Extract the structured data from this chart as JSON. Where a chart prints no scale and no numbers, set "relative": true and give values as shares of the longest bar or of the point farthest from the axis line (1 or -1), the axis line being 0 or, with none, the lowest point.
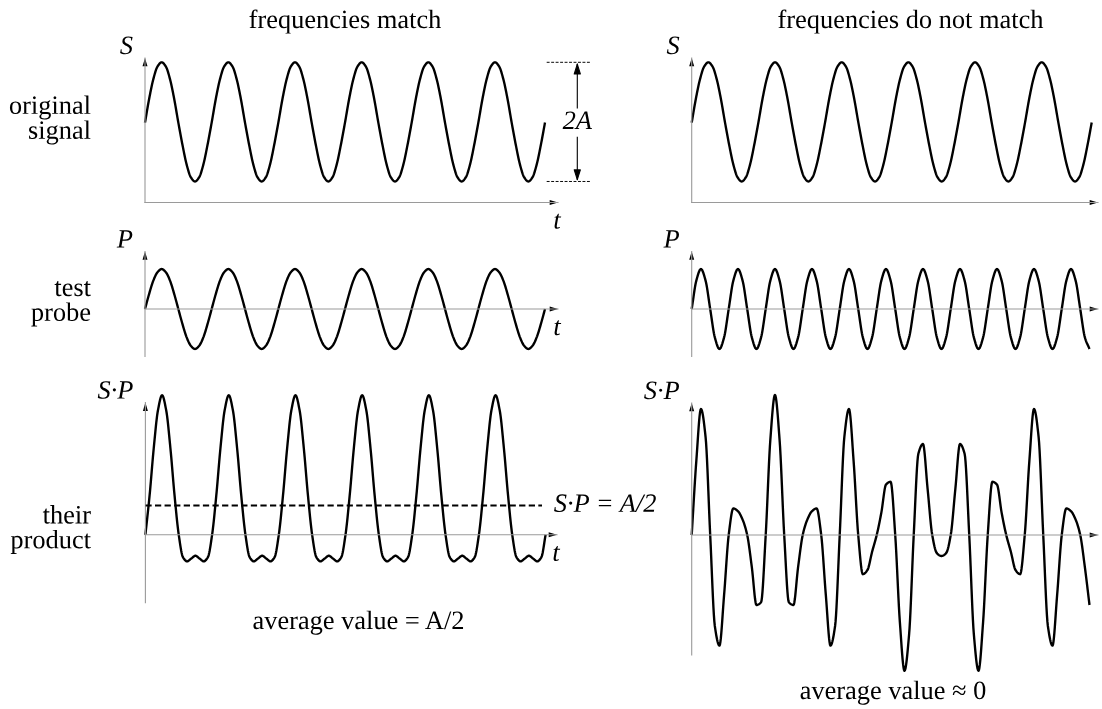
{
  "chart_data": [
    {
      "type": "line",
      "title": "frequencies match",
      "xlabel": "t",
      "ylabel": "S",
      "relative": true,
      "annotations": [
        "original\nsignal",
        {
          "text": "2A",
          "y": 0.57
        }
      ],
      "categories": [
        null,
        null,
        null,
        null,
        null,
        null,
        null,
        null,
        null,
        null,
        null,
        null,
        null,
        null,
        null,
        null,
        null,
        null,
        null,
        null,
        null,
        null,
        null,
        null,
        null,
        null,
        null,
        null,
        null,
        null,
        null,
        null,
        null,
        null,
        null,
        null,
        null,
        null,
        null,
        null,
        null,
        null,
        null,
        null,
        null,
        null,
        null,
        null,
        null,
        null,
        null,
        null,
        null,
        null,
        null,
        null,
        null,
        null,
        null,
        null,
        null,
        null,
        null,
        null,
        null,
        null,
        null,
        null,
        null,
        null,
        null,
        null,
        null,
        null,
        null,
        null,
        null,
        null,
        null,
        null,
        null,
        null,
        null,
        null,
        null,
        null,
        null,
        null,
        null,
        null,
        null,
        null,
        null,
        null,
        null,
        null,
        null
      ],
      "series": [
        {
          "color": "#000000",
          "values": [
            0.57,
            0.74,
            0.88,
            0.97,
            1,
            0.97,
            0.88,
            0.74,
            0.57,
            0.41,
            0.27,
            0.18,
            0.15,
            0.18,
            0.27,
            0.41,
            0.57,
            0.74,
            0.88,
            0.97,
            1,
            0.97,
            0.88,
            0.74,
            0.57,
            0.41,
            0.27,
            0.18,
            0.15,
            0.18,
            0.27,
            0.41,
            0.57,
            0.74,
            0.88,
            0.97,
            1,
            0.97,
            0.88,
            0.74,
            0.57,
            0.41,
            0.27,
            0.18,
            0.15,
            0.18,
            0.27,
            0.41,
            0.57,
            0.74,
            0.88,
            0.97,
            1,
            0.97,
            0.88,
            0.74,
            0.57,
            0.41,
            0.27,
            0.18,
            0.15,
            0.18,
            0.27,
            0.41,
            0.57,
            0.74,
            0.88,
            0.97,
            1,
            0.97,
            0.88,
            0.74,
            0.57,
            0.41,
            0.27,
            0.18,
            0.15,
            0.18,
            0.27,
            0.41,
            0.57,
            0.74,
            0.88,
            0.97,
            1,
            0.97,
            0.88,
            0.74,
            0.57,
            0.41,
            0.27,
            0.18,
            0.15,
            0.18,
            0.27,
            0.41,
            0.57
          ]
        }
      ]
    },
    {
      "type": "line",
      "title": "frequencies do not match",
      "ylabel": "S",
      "relative": true,
      "categories": [
        null,
        null,
        null,
        null,
        null,
        null,
        null,
        null,
        null,
        null,
        null,
        null,
        null,
        null,
        null,
        null,
        null,
        null,
        null,
        null,
        null,
        null,
        null,
        null,
        null,
        null,
        null,
        null,
        null,
        null,
        null,
        null,
        null,
        null,
        null,
        null,
        null,
        null,
        null,
        null,
        null,
        null,
        null,
        null,
        null,
        null,
        null,
        null,
        null,
        null,
        null,
        null,
        null,
        null,
        null,
        null,
        null,
        null,
        null,
        null,
        null,
        null,
        null,
        null,
        null,
        null,
        null,
        null,
        null,
        null,
        null,
        null,
        null,
        null,
        null,
        null,
        null,
        null,
        null,
        null,
        null,
        null,
        null,
        null,
        null,
        null,
        null,
        null,
        null,
        null,
        null,
        null,
        null,
        null,
        null,
        null,
        null
      ],
      "series": [
        {
          "color": "#000000",
          "values": [
            0.57,
            0.74,
            0.88,
            0.97,
            1,
            0.97,
            0.88,
            0.74,
            0.57,
            0.41,
            0.27,
            0.18,
            0.15,
            0.18,
            0.27,
            0.41,
            0.57,
            0.74,
            0.88,
            0.97,
            1,
            0.97,
            0.88,
            0.74,
            0.57,
            0.41,
            0.27,
            0.18,
            0.15,
            0.18,
            0.27,
            0.41,
            0.57,
            0.74,
            0.88,
            0.97,
            1,
            0.97,
            0.88,
            0.74,
            0.57,
            0.41,
            0.27,
            0.18,
            0.15,
            0.18,
            0.27,
            0.41,
            0.57,
            0.74,
            0.88,
            0.97,
            1,
            0.97,
            0.88,
            0.74,
            0.57,
            0.41,
            0.27,
            0.18,
            0.15,
            0.18,
            0.27,
            0.41,
            0.57,
            0.74,
            0.88,
            0.97,
            1,
            0.97,
            0.88,
            0.74,
            0.57,
            0.41,
            0.27,
            0.18,
            0.15,
            0.18,
            0.27,
            0.41,
            0.57,
            0.74,
            0.88,
            0.97,
            1,
            0.97,
            0.88,
            0.74,
            0.57,
            0.41,
            0.27,
            0.18,
            0.15,
            0.18,
            0.27,
            0.41,
            0.57
          ]
        }
      ]
    },
    {
      "type": "line",
      "xlabel": "t",
      "ylabel": "P",
      "relative": true,
      "annotations": [
        "test\nprobe"
      ],
      "categories": [
        null,
        null,
        null,
        null,
        null,
        null,
        null,
        null,
        null,
        null,
        null,
        null,
        null,
        null,
        null,
        null,
        null,
        null,
        null,
        null,
        null,
        null,
        null,
        null,
        null,
        null,
        null,
        null,
        null,
        null,
        null,
        null,
        null,
        null,
        null,
        null,
        null,
        null,
        null,
        null,
        null,
        null,
        null,
        null,
        null,
        null,
        null,
        null,
        null,
        null,
        null,
        null,
        null,
        null,
        null,
        null,
        null,
        null,
        null,
        null,
        null,
        null,
        null,
        null,
        null,
        null,
        null,
        null,
        null,
        null,
        null,
        null,
        null,
        null,
        null,
        null,
        null,
        null,
        null,
        null,
        null,
        null,
        null,
        null,
        null,
        null,
        null,
        null,
        null,
        null,
        null,
        null,
        null,
        null,
        null,
        null,
        null
      ],
      "series": [
        {
          "color": "#000000",
          "values": [
            0,
            0.38,
            0.71,
            0.92,
            1,
            0.92,
            0.71,
            0.38,
            0,
            -0.38,
            -0.71,
            -0.92,
            -1,
            -0.92,
            -0.71,
            -0.38,
            0,
            0.38,
            0.71,
            0.92,
            1,
            0.92,
            0.71,
            0.38,
            0,
            -0.38,
            -0.71,
            -0.92,
            -1,
            -0.92,
            -0.71,
            -0.38,
            0,
            0.38,
            0.71,
            0.92,
            1,
            0.92,
            0.71,
            0.38,
            0,
            -0.38,
            -0.71,
            -0.92,
            -1,
            -0.92,
            -0.71,
            -0.38,
            0,
            0.38,
            0.71,
            0.92,
            1,
            0.92,
            0.71,
            0.38,
            0,
            -0.38,
            -0.71,
            -0.92,
            -1,
            -0.92,
            -0.71,
            -0.38,
            0,
            0.38,
            0.71,
            0.92,
            1,
            0.92,
            0.71,
            0.38,
            0,
            -0.38,
            -0.71,
            -0.92,
            -1,
            -0.92,
            -0.71,
            -0.38,
            0,
            0.38,
            0.71,
            0.92,
            1,
            0.92,
            0.71,
            0.38,
            0,
            -0.38,
            -0.71,
            -0.92,
            -1,
            -0.92,
            -0.71,
            -0.38,
            0
          ]
        }
      ]
    },
    {
      "type": "line",
      "ylabel": "P",
      "relative": true,
      "categories": [
        null,
        null,
        null,
        null,
        null,
        null,
        null,
        null,
        null,
        null,
        null,
        null,
        null,
        null,
        null,
        null,
        null,
        null,
        null,
        null,
        null,
        null,
        null,
        null,
        null,
        null,
        null,
        null,
        null,
        null,
        null,
        null,
        null,
        null,
        null,
        null,
        null,
        null,
        null,
        null,
        null,
        null,
        null,
        null,
        null,
        null,
        null,
        null,
        null,
        null,
        null,
        null,
        null,
        null,
        null,
        null,
        null,
        null,
        null,
        null,
        null,
        null,
        null,
        null,
        null,
        null,
        null,
        null,
        null,
        null,
        null,
        null,
        null,
        null,
        null,
        null,
        null,
        null,
        null,
        null,
        null,
        null,
        null,
        null,
        null,
        null,
        null
      ],
      "series": [
        {
          "color": "#000000",
          "values": [
            0,
            0.71,
            1,
            0.71,
            0,
            -0.71,
            -1,
            -0.71,
            0,
            0.71,
            1,
            0.71,
            0,
            -0.71,
            -1,
            -0.71,
            0,
            0.71,
            1,
            0.71,
            0,
            -0.71,
            -1,
            -0.71,
            0,
            0.71,
            1,
            0.71,
            0,
            -0.71,
            -1,
            -0.71,
            0,
            0.71,
            1,
            0.71,
            0,
            -0.71,
            -1,
            -0.71,
            0,
            0.71,
            1,
            0.71,
            0,
            -0.71,
            -1,
            -0.71,
            0,
            0.71,
            1,
            0.71,
            0,
            -0.71,
            -1,
            -0.71,
            0,
            0.71,
            1,
            0.71,
            0,
            -0.71,
            -1,
            -0.71,
            0,
            0.71,
            1,
            0.71,
            0,
            -0.71,
            -1,
            -0.71,
            0,
            0.71,
            1,
            0.71,
            0,
            -0.71,
            -1,
            -0.71,
            0,
            0.71,
            1,
            0.71,
            0,
            -0.71,
            -1
          ]
        }
      ]
    },
    {
      "type": "line",
      "xlabel": "t",
      "ylabel": "S·P",
      "relative": true,
      "annotations": [
        "their\nproduct",
        "average value = A/2"
      ],
      "ref_lines": [
        {
          "axis": "y",
          "value": 0.21,
          "label": "S·P = A/2",
          "line_style": "dashed"
        }
      ],
      "categories": [
        null,
        null,
        null,
        null,
        null,
        null,
        null,
        null,
        null,
        null,
        null,
        null,
        null,
        null,
        null,
        null,
        null,
        null,
        null,
        null,
        null,
        null,
        null,
        null,
        null,
        null,
        null,
        null,
        null,
        null,
        null,
        null,
        null,
        null,
        null,
        null,
        null,
        null,
        null,
        null,
        null,
        null,
        null,
        null,
        null,
        null,
        null,
        null,
        null,
        null,
        null,
        null,
        null,
        null,
        null,
        null,
        null,
        null,
        null,
        null,
        null,
        null,
        null,
        null,
        null,
        null,
        null,
        null,
        null,
        null,
        null,
        null,
        null,
        null,
        null,
        null,
        null,
        null,
        null,
        null,
        null,
        null,
        null,
        null,
        null,
        null,
        null,
        null,
        null,
        null,
        null,
        null,
        null,
        null,
        null,
        null,
        null
      ],
      "series": [
        {
          "color": "#000000",
          "values": [
            0,
            0.28,
            0.62,
            0.89,
            1,
            0.89,
            0.62,
            0.28,
            0,
            -0.16,
            -0.19,
            -0.17,
            -0.15,
            -0.17,
            -0.19,
            -0.16,
            0,
            0.28,
            0.62,
            0.89,
            1,
            0.89,
            0.62,
            0.28,
            0,
            -0.16,
            -0.19,
            -0.17,
            -0.15,
            -0.17,
            -0.19,
            -0.16,
            0,
            0.28,
            0.62,
            0.89,
            1,
            0.89,
            0.62,
            0.28,
            0,
            -0.16,
            -0.19,
            -0.17,
            -0.15,
            -0.17,
            -0.19,
            -0.16,
            0,
            0.28,
            0.62,
            0.89,
            1,
            0.89,
            0.62,
            0.28,
            0,
            -0.16,
            -0.19,
            -0.17,
            -0.15,
            -0.17,
            -0.19,
            -0.16,
            0,
            0.28,
            0.62,
            0.89,
            1,
            0.89,
            0.62,
            0.28,
            0,
            -0.16,
            -0.19,
            -0.17,
            -0.15,
            -0.17,
            -0.19,
            -0.16,
            0,
            0.28,
            0.62,
            0.89,
            1,
            0.89,
            0.62,
            0.28,
            0,
            -0.16,
            -0.19,
            -0.17,
            -0.15,
            -0.17,
            -0.19,
            -0.16,
            0
          ]
        }
      ]
    },
    {
      "type": "line",
      "ylabel": "S·P",
      "relative": true,
      "annotations": [
        "average value ≈ 0"
      ],
      "categories": [
        null,
        null,
        null,
        null,
        null,
        null,
        null,
        null,
        null,
        null,
        null,
        null,
        null,
        null,
        null,
        null,
        null,
        null,
        null,
        null,
        null,
        null,
        null,
        null,
        null,
        null,
        null,
        null,
        null,
        null,
        null,
        null,
        null,
        null,
        null,
        null,
        null,
        null,
        null,
        null,
        null,
        null,
        null,
        null,
        null,
        null,
        null,
        null,
        null,
        null,
        null,
        null,
        null,
        null,
        null,
        null,
        null,
        null,
        null,
        null,
        null,
        null,
        null,
        null,
        null,
        null,
        null,
        null,
        null,
        null,
        null,
        null,
        null,
        null,
        null,
        null,
        null,
        null,
        null,
        null,
        null,
        null,
        null,
        null,
        null,
        null,
        null
      ],
      "series": [
        {
          "color": "#000000",
          "values": [
            0,
            0.53,
            0.9,
            0.7,
            0,
            -0.65,
            -0.79,
            -0.43,
            0,
            0.19,
            0.17,
            0.11,
            0,
            -0.23,
            -0.5,
            -0.48,
            0,
            0.68,
            1,
            0.68,
            0,
            -0.48,
            -0.5,
            -0.23,
            0,
            0.11,
            0.17,
            0.19,
            0,
            -0.43,
            -0.79,
            -0.65,
            0,
            0.7,
            0.9,
            0.53,
            0,
            -0.28,
            -0.25,
            -0.12,
            0,
            0.16,
            0.36,
            0.38,
            0,
            -0.62,
            -0.97,
            -0.71,
            0,
            0.58,
            0.65,
            0.33,
            0,
            -0.13,
            -0.15,
            -0.13,
            0,
            0.33,
            0.65,
            0.58,
            0,
            -0.71,
            -0.97,
            -0.62,
            0,
            0.38,
            0.36,
            0.16,
            0,
            -0.12,
            -0.25,
            -0.28,
            0,
            0.53,
            0.9,
            0.7,
            0,
            -0.65,
            -0.79,
            -0.43,
            0,
            0.19,
            0.17,
            0.11,
            0,
            -0.23,
            -0.5
          ]
        }
      ]
    }
  ]
}
